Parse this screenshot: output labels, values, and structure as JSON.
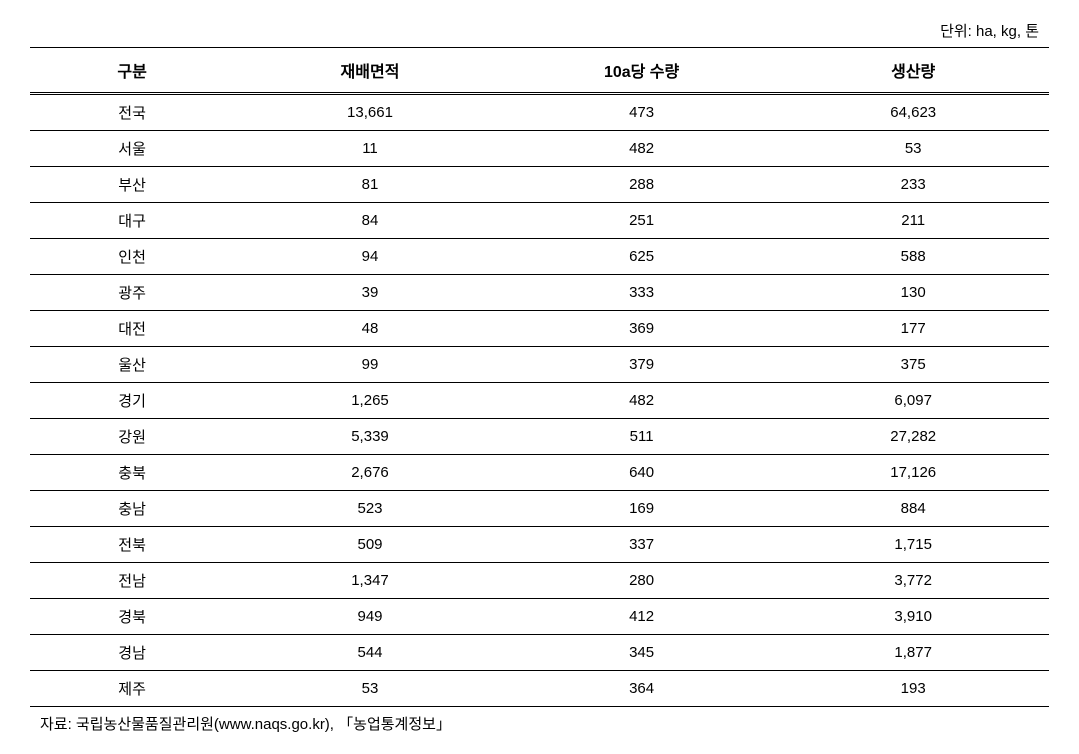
{
  "unit_label": "단위: ha, kg, 톤",
  "columns": [
    "구분",
    "재배면적",
    "10a당 수량",
    "생산량"
  ],
  "rows": [
    {
      "region": "전국",
      "area": "13,661",
      "yield": "473",
      "production": "64,623"
    },
    {
      "region": "서울",
      "area": "11",
      "yield": "482",
      "production": "53"
    },
    {
      "region": "부산",
      "area": "81",
      "yield": "288",
      "production": "233"
    },
    {
      "region": "대구",
      "area": "84",
      "yield": "251",
      "production": "211"
    },
    {
      "region": "인천",
      "area": "94",
      "yield": "625",
      "production": "588"
    },
    {
      "region": "광주",
      "area": "39",
      "yield": "333",
      "production": "130"
    },
    {
      "region": "대전",
      "area": "48",
      "yield": "369",
      "production": "177"
    },
    {
      "region": "울산",
      "area": "99",
      "yield": "379",
      "production": "375"
    },
    {
      "region": "경기",
      "area": "1,265",
      "yield": "482",
      "production": "6,097"
    },
    {
      "region": "강원",
      "area": "5,339",
      "yield": "511",
      "production": "27,282"
    },
    {
      "region": "충북",
      "area": "2,676",
      "yield": "640",
      "production": "17,126"
    },
    {
      "region": "충남",
      "area": "523",
      "yield": "169",
      "production": "884"
    },
    {
      "region": "전북",
      "area": "509",
      "yield": "337",
      "production": "1,715"
    },
    {
      "region": "전남",
      "area": "1,347",
      "yield": "280",
      "production": "3,772"
    },
    {
      "region": "경북",
      "area": "949",
      "yield": "412",
      "production": "3,910"
    },
    {
      "region": "경남",
      "area": "544",
      "yield": "345",
      "production": "1,877"
    },
    {
      "region": "제주",
      "area": "53",
      "yield": "364",
      "production": "193"
    }
  ],
  "source_note": "자료: 국립농산물품질관리원(www.naqs.go.kr), 「농업통계정보」",
  "styling": {
    "font_family": "Malgun Gothic",
    "header_fontsize": 16,
    "cell_fontsize": 15,
    "border_color": "#000000",
    "background_color": "#ffffff",
    "text_color": "#000000",
    "header_font_weight": "bold",
    "border_top_width": 1.5,
    "row_border_width": 1,
    "header_border_style": "double"
  }
}
